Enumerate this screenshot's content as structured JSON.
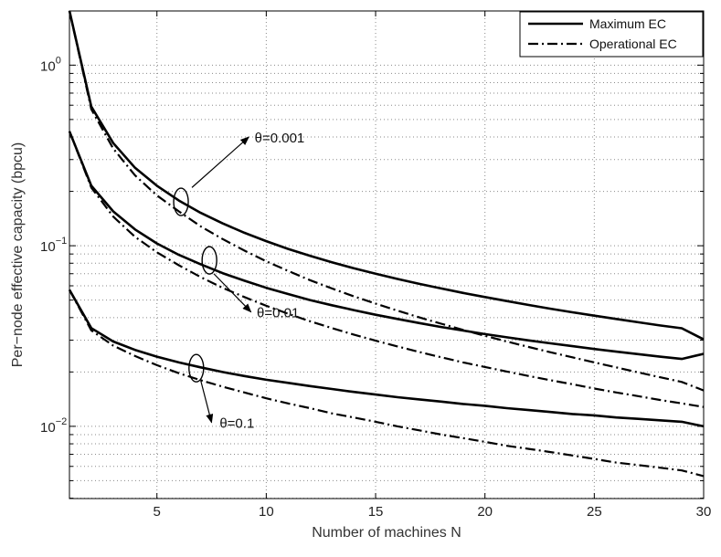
{
  "chart_data": {
    "type": "line",
    "title": "",
    "xlabel": "Number of machines N",
    "ylabel": "Per−node effective capacity (bpcu)",
    "xlim": [
      1,
      30
    ],
    "ylim_log10": [
      -2.4,
      0.3
    ],
    "x_ticks": [
      5,
      10,
      15,
      20,
      25,
      30
    ],
    "y_ticks": [
      {
        "base": "10",
        "exp": "0",
        "value": 1
      },
      {
        "base": "10",
        "exp": "−1",
        "value": 0.1
      },
      {
        "base": "10",
        "exp": "−2",
        "value": 0.01
      }
    ],
    "grid": true,
    "legend_position": "top-right",
    "legend": [
      {
        "label": "Maximum EC",
        "style": "solid"
      },
      {
        "label": "Operational EC",
        "style": "dashdot"
      }
    ],
    "x": [
      1,
      2,
      3,
      4,
      5,
      6,
      7,
      8,
      9,
      10,
      11,
      12,
      13,
      14,
      15,
      16,
      17,
      18,
      19,
      20,
      21,
      22,
      23,
      24,
      25,
      26,
      27,
      28,
      29,
      30
    ],
    "series": [
      {
        "name": "Maximum EC, θ=0.001",
        "style": "solid",
        "values": [
          2.0,
          0.59,
          0.37,
          0.27,
          0.215,
          0.178,
          0.152,
          0.133,
          0.118,
          0.106,
          0.096,
          0.088,
          0.081,
          0.075,
          0.07,
          0.0655,
          0.0615,
          0.058,
          0.0548,
          0.052,
          0.0494,
          0.047,
          0.0448,
          0.0428,
          0.041,
          0.0393,
          0.0377,
          0.0362,
          0.0349,
          0.0303
        ]
      },
      {
        "name": "Operational EC, θ=0.001",
        "style": "dashdot",
        "values": [
          2.0,
          0.57,
          0.345,
          0.245,
          0.19,
          0.155,
          0.128,
          0.109,
          0.094,
          0.082,
          0.0725,
          0.0645,
          0.058,
          0.0525,
          0.0478,
          0.0437,
          0.0401,
          0.037,
          0.0342,
          0.0317,
          0.0295,
          0.0275,
          0.0257,
          0.0241,
          0.0226,
          0.0212,
          0.0199,
          0.0187,
          0.0176,
          0.0158
        ]
      },
      {
        "name": "Maximum EC, θ=0.01",
        "style": "solid",
        "values": [
          0.43,
          0.215,
          0.155,
          0.123,
          0.103,
          0.089,
          0.079,
          0.0705,
          0.064,
          0.0585,
          0.054,
          0.05,
          0.0468,
          0.044,
          0.0415,
          0.0393,
          0.0373,
          0.0355,
          0.0339,
          0.0324,
          0.0311,
          0.0299,
          0.0288,
          0.0278,
          0.0268,
          0.0259,
          0.0251,
          0.0243,
          0.0236,
          0.0252
        ]
      },
      {
        "name": "Operational EC, θ=0.01",
        "style": "dashdot",
        "values": [
          0.43,
          0.21,
          0.145,
          0.112,
          0.092,
          0.078,
          0.067,
          0.0585,
          0.052,
          0.0465,
          0.042,
          0.0382,
          0.035,
          0.0322,
          0.0298,
          0.0277,
          0.0258,
          0.0241,
          0.0226,
          0.0213,
          0.0201,
          0.019,
          0.018,
          0.0171,
          0.0162,
          0.0154,
          0.0147,
          0.014,
          0.0134,
          0.0128
        ]
      },
      {
        "name": "Maximum EC, θ=0.1",
        "style": "solid",
        "values": [
          0.057,
          0.035,
          0.0295,
          0.0265,
          0.0243,
          0.0226,
          0.0212,
          0.02,
          0.019,
          0.0181,
          0.0174,
          0.0167,
          0.0161,
          0.0155,
          0.015,
          0.0145,
          0.0141,
          0.0137,
          0.0133,
          0.013,
          0.0126,
          0.0123,
          0.012,
          0.0117,
          0.0115,
          0.0112,
          0.011,
          0.0108,
          0.0106,
          0.01
        ]
      },
      {
        "name": "Operational EC, θ=0.1",
        "style": "dashdot",
        "values": [
          0.057,
          0.034,
          0.028,
          0.0245,
          0.0218,
          0.0197,
          0.018,
          0.0166,
          0.0154,
          0.0143,
          0.0134,
          0.0126,
          0.0118,
          0.0112,
          0.0106,
          0.01,
          0.0095,
          0.009,
          0.0086,
          0.0082,
          0.0078,
          0.0075,
          0.0072,
          0.0069,
          0.0066,
          0.0063,
          0.0061,
          0.0059,
          0.0057,
          0.0053
        ]
      }
    ],
    "annotations": [
      {
        "label": "θ=0.001",
        "ellipse_x": 6.1,
        "ellipse_y": 0.175,
        "arrow_from_x": 6.6,
        "arrow_from_y": 0.21,
        "arrow_to_x": 9.2,
        "arrow_to_y": 0.4,
        "text_x": 9.3,
        "text_y": 0.4
      },
      {
        "label": "θ=0.01",
        "ellipse_x": 7.4,
        "ellipse_y": 0.083,
        "arrow_from_x": 7.6,
        "arrow_from_y": 0.07,
        "arrow_to_x": 9.3,
        "arrow_to_y": 0.043,
        "text_x": 9.4,
        "text_y": 0.043
      },
      {
        "label": "θ=0.1",
        "ellipse_x": 6.8,
        "ellipse_y": 0.021,
        "arrow_from_x": 7.0,
        "arrow_from_y": 0.018,
        "arrow_to_x": 7.5,
        "arrow_to_y": 0.0105,
        "text_x": 7.7,
        "text_y": 0.0105
      }
    ]
  }
}
